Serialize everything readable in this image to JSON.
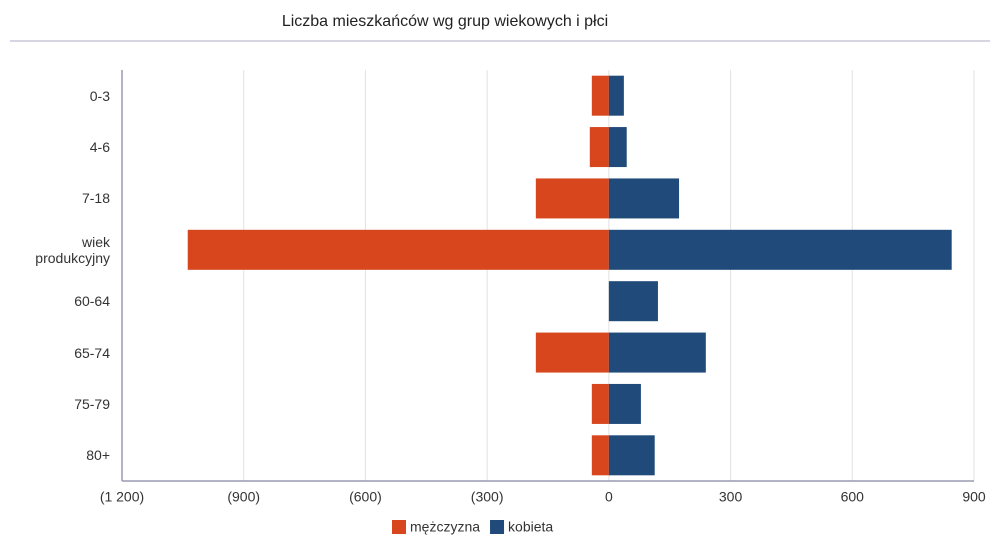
{
  "chart_data": {
    "type": "bar",
    "orientation": "horizontal",
    "stacked": true,
    "title": "Liczba mieszkańców wg grup wiekowych i płci",
    "categories": [
      "0-3",
      "4-6",
      "7-18",
      "wiek produkcyjny",
      "60-64",
      "65-74",
      "75-79",
      "80+"
    ],
    "series": [
      {
        "name": "mężczyzna",
        "color": "#d7461c",
        "values": [
          -42,
          -47,
          -180,
          -1038,
          0,
          -180,
          -42,
          -42
        ]
      },
      {
        "name": "kobieta",
        "color": "#1f4a7a",
        "values": [
          37,
          44,
          173,
          845,
          121,
          239,
          79,
          113
        ]
      }
    ],
    "xlim": [
      -1200,
      900
    ],
    "xticks": [
      {
        "value": -1200,
        "label": "(1 200)"
      },
      {
        "value": -900,
        "label": "(900)"
      },
      {
        "value": -600,
        "label": "(600)"
      },
      {
        "value": -300,
        "label": "(300)"
      },
      0,
      300,
      600,
      900
    ],
    "grid": true,
    "legend": "bottom"
  }
}
